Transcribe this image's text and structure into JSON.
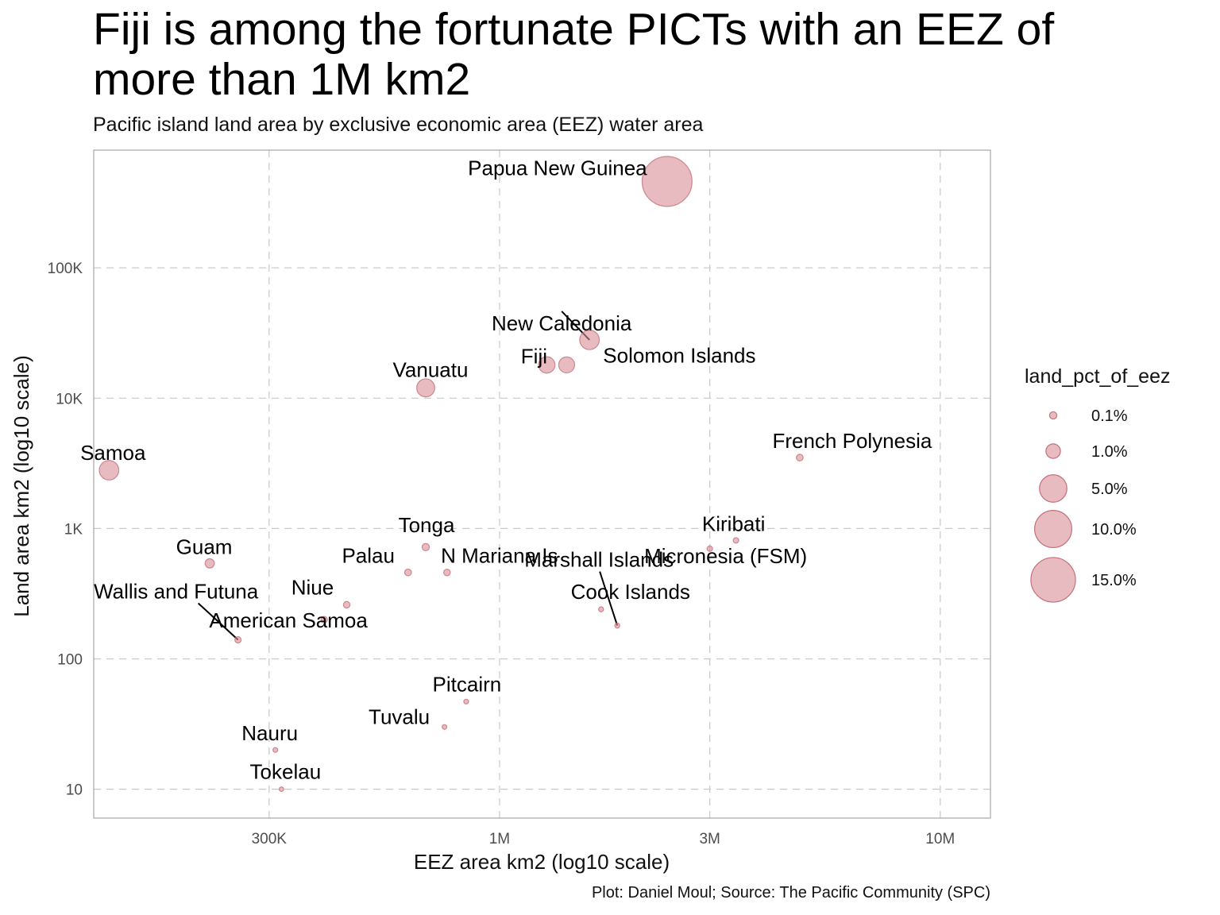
{
  "title": "Fiji is among the fortunate PICTs with an EEZ of more than 1M km2",
  "subtitle": "Pacific island land area by exclusive economic area (EEZ) water area",
  "caption": "Plot: Daniel Moul; Source: The Pacific Community (SPC)",
  "colors": {
    "point_fill": "#d98e96",
    "point_stroke": "#c4707b",
    "grid": "#c8c8c8",
    "panel_border": "#a6a6a6"
  },
  "chart_data": {
    "type": "scatter",
    "xlabel": "EEZ area km2 (log10 scale)",
    "ylabel": "Land area km2 (log10 scale)",
    "x_scale": "log10",
    "y_scale": "log10",
    "xlim": [
      120000,
      13000000
    ],
    "ylim": [
      6,
      800000
    ],
    "x_ticks": [
      {
        "value": 300000,
        "label": "300K"
      },
      {
        "value": 1000000,
        "label": "1M"
      },
      {
        "value": 3000000,
        "label": "3M"
      },
      {
        "value": 10000000,
        "label": "10M"
      }
    ],
    "y_ticks": [
      {
        "value": 10,
        "label": "10"
      },
      {
        "value": 100,
        "label": "100"
      },
      {
        "value": 1000,
        "label": "1K"
      },
      {
        "value": 10000,
        "label": "10K"
      },
      {
        "value": 100000,
        "label": "100K"
      }
    ],
    "grid": "dashed",
    "size_variable": "land_pct_of_eez",
    "legend": {
      "title": "land_pct_of_eez",
      "placement": "right",
      "entries": [
        {
          "label": "0.1%",
          "value": 0.1
        },
        {
          "label": "1.0%",
          "value": 1.0
        },
        {
          "label": "5.0%",
          "value": 5.0
        },
        {
          "label": "10.0%",
          "value": 10.0
        },
        {
          "label": "15.0%",
          "value": 15.0
        }
      ]
    },
    "points": [
      {
        "name": "Papua New Guinea",
        "x": 2400000,
        "y": 460000,
        "pct": 19.2
      },
      {
        "name": "New Caledonia",
        "x": 1600000,
        "y": 28000,
        "pct": 2.2
      },
      {
        "name": "Solomon Islands",
        "x": 1420000,
        "y": 18000,
        "pct": 1.3
      },
      {
        "name": "Fiji",
        "x": 1280000,
        "y": 18000,
        "pct": 1.4
      },
      {
        "name": "Vanuatu",
        "x": 680000,
        "y": 12000,
        "pct": 1.8
      },
      {
        "name": "French Polynesia",
        "x": 4800000,
        "y": 3500,
        "pct": 0.07
      },
      {
        "name": "Samoa",
        "x": 130000,
        "y": 2800,
        "pct": 2.2
      },
      {
        "name": "Tonga",
        "x": 680000,
        "y": 720,
        "pct": 0.1
      },
      {
        "name": "Kiribati",
        "x": 3440000,
        "y": 810,
        "pct": 0.02
      },
      {
        "name": "Micronesia (FSM)",
        "x": 3000000,
        "y": 700,
        "pct": 0.02
      },
      {
        "name": "Guam",
        "x": 220000,
        "y": 540,
        "pct": 0.25
      },
      {
        "name": "Palau",
        "x": 620000,
        "y": 460,
        "pct": 0.07
      },
      {
        "name": "N Mariana Is",
        "x": 760000,
        "y": 460,
        "pct": 0.06
      },
      {
        "name": "Marshall Islands",
        "x": 1850000,
        "y": 180,
        "pct": 0.01
      },
      {
        "name": "Cook Islands",
        "x": 1700000,
        "y": 240,
        "pct": 0.01
      },
      {
        "name": "Niue",
        "x": 450000,
        "y": 260,
        "pct": 0.06
      },
      {
        "name": "American Samoa",
        "x": 400000,
        "y": 200,
        "pct": 0.05
      },
      {
        "name": "Wallis and Futuna",
        "x": 255000,
        "y": 140,
        "pct": 0.05
      },
      {
        "name": "Pitcairn",
        "x": 840000,
        "y": 47,
        "pct": 0.006
      },
      {
        "name": "Tuvalu",
        "x": 750000,
        "y": 30,
        "pct": 0.004
      },
      {
        "name": "Nauru",
        "x": 310000,
        "y": 20,
        "pct": 0.006
      },
      {
        "name": "Tokelau",
        "x": 320000,
        "y": 10,
        "pct": 0.003
      }
    ]
  }
}
